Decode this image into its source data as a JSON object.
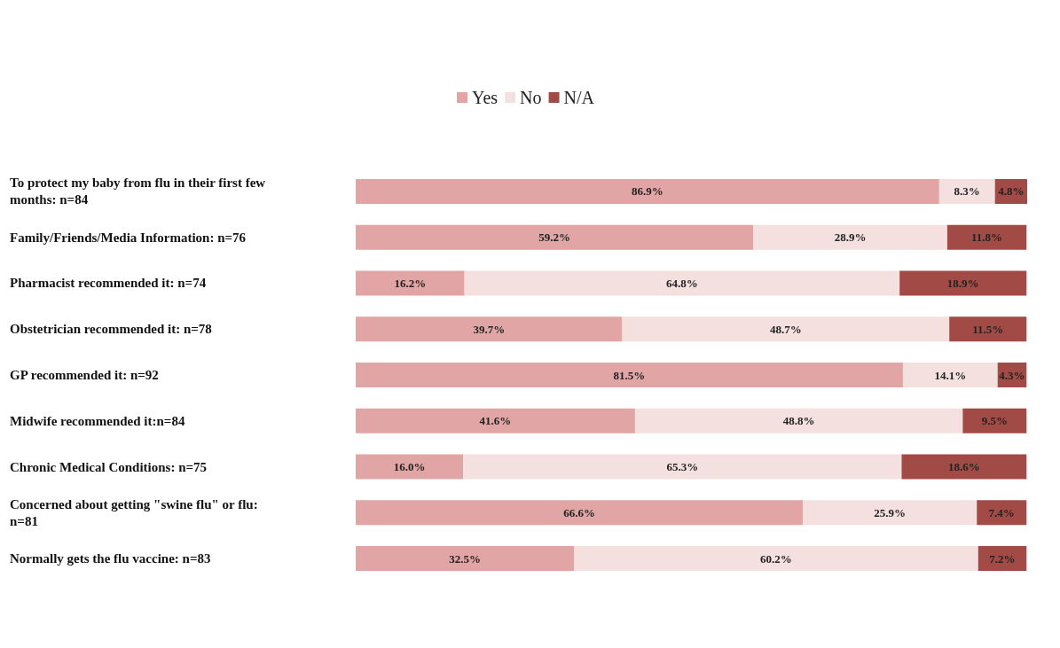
{
  "chart_data": {
    "type": "bar",
    "orientation": "horizontal",
    "stacked": true,
    "legend": "top",
    "categories": [
      "To protect my baby from flu in their first few months: n=84",
      "Family/Friends/Media Information: n=76",
      "Pharmacist recommended it: n=74",
      "Obstetrician recommended it: n=78",
      "GP recommended it: n=92",
      "Midwife recommended it:n=84",
      "Chronic Medical Conditions: n=75",
      "Concerned about getting \"swine flu\" or flu: n=81",
      "Normally gets the flu vaccine: n=83"
    ],
    "series": [
      {
        "name": "Yes",
        "color": "#e0a5a4",
        "values": [
          86.9,
          59.2,
          16.2,
          39.7,
          81.5,
          41.6,
          16.0,
          66.6,
          32.5
        ],
        "value_labels": [
          "86.9%",
          "59.2%",
          "16.2%",
          "39.7%",
          "81.5%",
          "41.6%",
          "16.0%",
          "66.6%",
          "32.5%"
        ]
      },
      {
        "name": "No",
        "color": "#f5e0e0",
        "values": [
          8.3,
          28.9,
          64.8,
          48.7,
          14.1,
          48.8,
          65.3,
          25.9,
          60.2
        ],
        "value_labels": [
          "8.3%",
          "28.9%",
          "64.8%",
          "48.7%",
          "14.1%",
          "48.8%",
          "65.3%",
          "25.9%",
          "60.2%"
        ]
      },
      {
        "name": "N/A",
        "color": "#a24b46",
        "values": [
          4.8,
          11.8,
          18.9,
          11.5,
          4.3,
          9.5,
          18.6,
          7.4,
          7.2
        ],
        "value_labels": [
          "4.8%",
          "11.8%",
          "18.9%",
          "11.5%",
          "4.3%",
          "9.5%",
          "18.6%",
          "7.4%",
          "7.2%"
        ]
      }
    ]
  }
}
